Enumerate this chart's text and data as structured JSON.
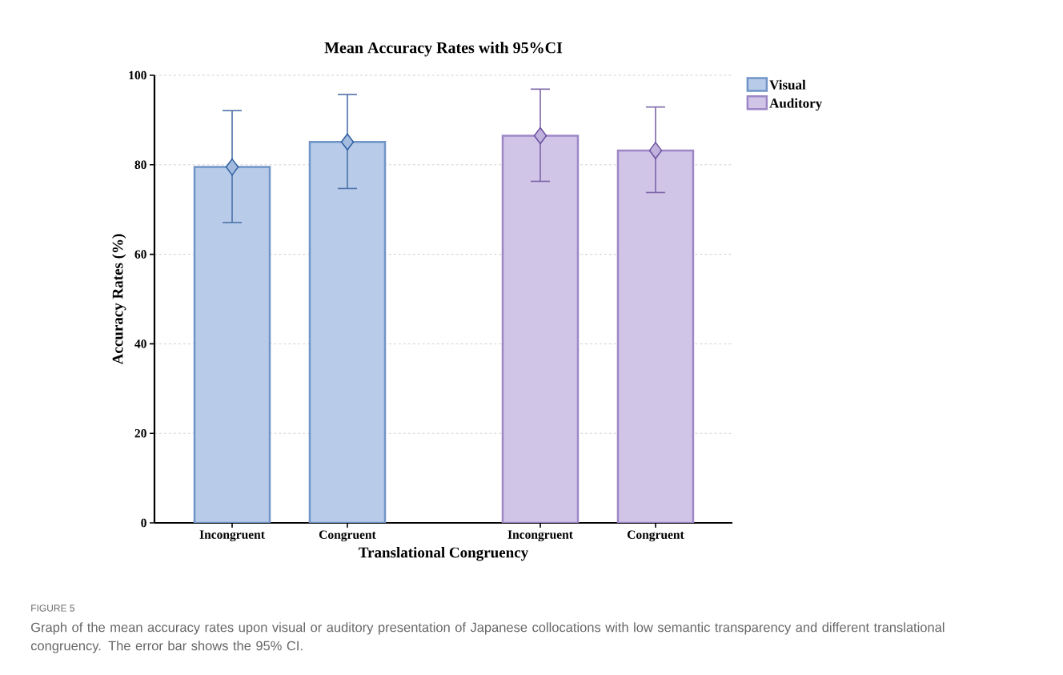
{
  "chart_data": {
    "type": "bar",
    "title": "Mean Accuracy Rates with 95%CI",
    "xlabel": "Translational Congruency",
    "ylabel": "Accuracy Rates (%)",
    "categories": [
      "Incongruent",
      "Congruent",
      "Incongruent",
      "Congruent"
    ],
    "series": [
      {
        "name": "Visual",
        "color": "#b8cce9",
        "values": [
          79.5,
          85.1,
          null,
          null
        ],
        "errors": [
          [
            67.1,
            92.1
          ],
          [
            74.7,
            95.7
          ],
          null,
          null
        ]
      },
      {
        "name": "Auditory",
        "color": "#d0c4e7",
        "values": [
          null,
          null,
          86.5,
          83.2
        ],
        "errors": [
          null,
          null,
          [
            76.3,
            96.9
          ],
          [
            73.8,
            92.9
          ]
        ]
      },
      {
        "type": "scatter",
        "color": "#a2bbdf",
        "values": [
          79.5,
          85.1,
          null,
          null
        ]
      },
      {
        "type": "scatter",
        "color": "#c1b2dd",
        "values": [
          null,
          null,
          86.5,
          83.2
        ]
      }
    ],
    "ylim": [
      0,
      100
    ],
    "yticks": [
      0,
      20,
      40,
      60,
      80,
      100
    ],
    "grid": "y",
    "legend": "top right",
    "marker": "diamond",
    "annotations": [
      "FIGURE 5",
      "Graph of the mean accuracy rates upon visual or auditory presentation of Japanese collocations with low semantic transparency and different translational congruency. The error bar shows the 95% CI."
    ]
  }
}
